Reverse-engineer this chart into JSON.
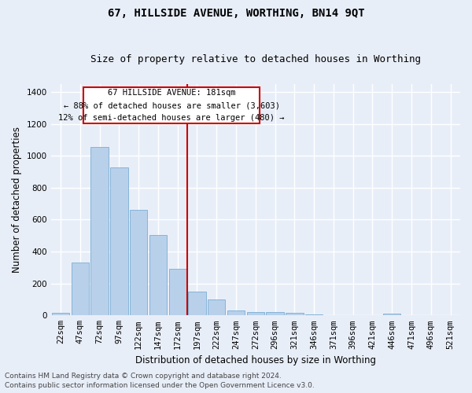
{
  "title": "67, HILLSIDE AVENUE, WORTHING, BN14 9QT",
  "subtitle": "Size of property relative to detached houses in Worthing",
  "xlabel": "Distribution of detached houses by size in Worthing",
  "ylabel": "Number of detached properties",
  "bar_color": "#b8d0ea",
  "bar_edgecolor": "#7aadd4",
  "background_color": "#e8eef8",
  "grid_color": "#ffffff",
  "fig_background": "#e8eef8",
  "categories": [
    "22sqm",
    "47sqm",
    "72sqm",
    "97sqm",
    "122sqm",
    "147sqm",
    "172sqm",
    "197sqm",
    "222sqm",
    "247sqm",
    "272sqm",
    "296sqm",
    "321sqm",
    "346sqm",
    "371sqm",
    "396sqm",
    "421sqm",
    "446sqm",
    "471sqm",
    "496sqm",
    "521sqm"
  ],
  "values": [
    15,
    330,
    1055,
    925,
    660,
    505,
    290,
    150,
    100,
    30,
    20,
    20,
    15,
    5,
    0,
    0,
    0,
    10,
    0,
    0,
    0
  ],
  "ylim": [
    0,
    1450
  ],
  "yticks": [
    0,
    200,
    400,
    600,
    800,
    1000,
    1200,
    1400
  ],
  "vline_x": 6.5,
  "vline_color": "#cc0000",
  "annotation_line1": "67 HILLSIDE AVENUE: 181sqm",
  "annotation_line2": "← 88% of detached houses are smaller (3,603)",
  "annotation_line3": "12% of semi-detached houses are larger (480) →",
  "footer_line1": "Contains HM Land Registry data © Crown copyright and database right 2024.",
  "footer_line2": "Contains public sector information licensed under the Open Government Licence v3.0.",
  "title_fontsize": 10,
  "subtitle_fontsize": 9,
  "axis_label_fontsize": 8.5,
  "tick_fontsize": 7.5,
  "annotation_fontsize": 7.5,
  "footer_fontsize": 6.5
}
